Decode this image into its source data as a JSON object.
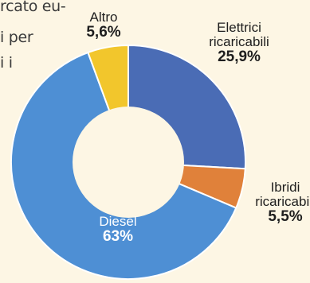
{
  "intro": {
    "lines": [
      "rcato eu-",
      "i per",
      "i i"
    ]
  },
  "colors": {
    "background": "#fdf6e4",
    "hole": "#fdf6e4"
  },
  "chart_data": {
    "type": "pie",
    "donut": true,
    "start": "top",
    "direction": "clockwise",
    "title": "",
    "slices": [
      {
        "label_lines": [
          "Elettrici",
          "ricaricabili"
        ],
        "value": 25.9,
        "value_text": "25,9%",
        "color": "#4a6cb5"
      },
      {
        "label_lines": [
          "Ibridi",
          "ricaricabili"
        ],
        "value": 5.5,
        "value_text": "5,5%",
        "color": "#e0813a"
      },
      {
        "label_lines": [
          "Diesel"
        ],
        "value": 63,
        "value_text": "63%",
        "color": "#4e8fd4"
      },
      {
        "label_lines": [
          "Altro"
        ],
        "value": 5.6,
        "value_text": "5,6%",
        "color": "#f2c62c"
      }
    ]
  }
}
